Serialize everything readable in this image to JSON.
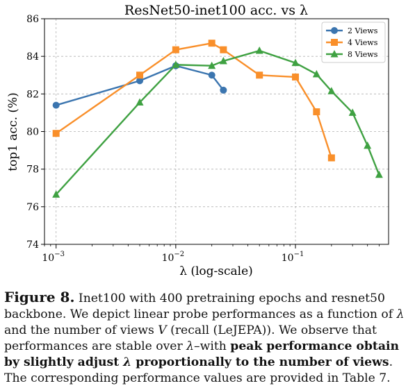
{
  "chart_data": {
    "type": "line",
    "title": "ResNet50-inet100 acc. vs λ",
    "xlabel": "λ (log-scale)",
    "ylabel": "top1 acc. (%)",
    "xscale": "log",
    "xlim": [
      0.0008,
      0.6
    ],
    "ylim": [
      74,
      86
    ],
    "yticks": [
      74,
      76,
      78,
      80,
      82,
      84,
      86
    ],
    "xticks": [
      {
        "value": 0.001,
        "base": "10",
        "exp": "−3"
      },
      {
        "value": 0.01,
        "base": "10",
        "exp": "−2"
      },
      {
        "value": 0.1,
        "base": "10",
        "exp": "−1"
      }
    ],
    "grid": true,
    "legend_position": "top-right",
    "series": [
      {
        "name": "2 Views",
        "color": "#3b75af",
        "marker": "circle",
        "x": [
          0.001,
          0.005,
          0.01,
          0.02,
          0.025
        ],
        "y": [
          81.4,
          82.7,
          83.5,
          83.0,
          82.2
        ]
      },
      {
        "name": "4 Views",
        "color": "#f98f2a",
        "marker": "square",
        "x": [
          0.001,
          0.005,
          0.01,
          0.02,
          0.025,
          0.05,
          0.1,
          0.15,
          0.2
        ],
        "y": [
          79.9,
          83.0,
          84.35,
          84.7,
          84.35,
          83.0,
          82.9,
          81.05,
          78.6
        ]
      },
      {
        "name": "8 Views",
        "color": "#3fa142",
        "marker": "triangle",
        "x": [
          0.001,
          0.005,
          0.01,
          0.02,
          0.025,
          0.05,
          0.1,
          0.15,
          0.2,
          0.3,
          0.4,
          0.5
        ],
        "y": [
          76.65,
          81.55,
          83.55,
          83.5,
          83.75,
          84.3,
          83.65,
          83.05,
          82.15,
          81.0,
          79.25,
          77.7
        ]
      }
    ]
  },
  "caption": {
    "label": "Figure 8.",
    "text_1": " Inet100 with 400 pretraining epochs and resnet50 backbone. We depict linear probe performances as a function of ",
    "lambda_1": "λ",
    "text_2": " and the number of views ",
    "v": "V",
    "text_3": " (recall (LeJEPA)). We observe that performances are stable over ",
    "lambda_2": "λ",
    "text_4": "–with ",
    "bold_1": "peak performance obtain by slightly adjust ",
    "lambda_3": "λ",
    "bold_2": " proportionally to the number of views",
    "text_5": ". The corresponding performance values are provided in Table 7."
  }
}
